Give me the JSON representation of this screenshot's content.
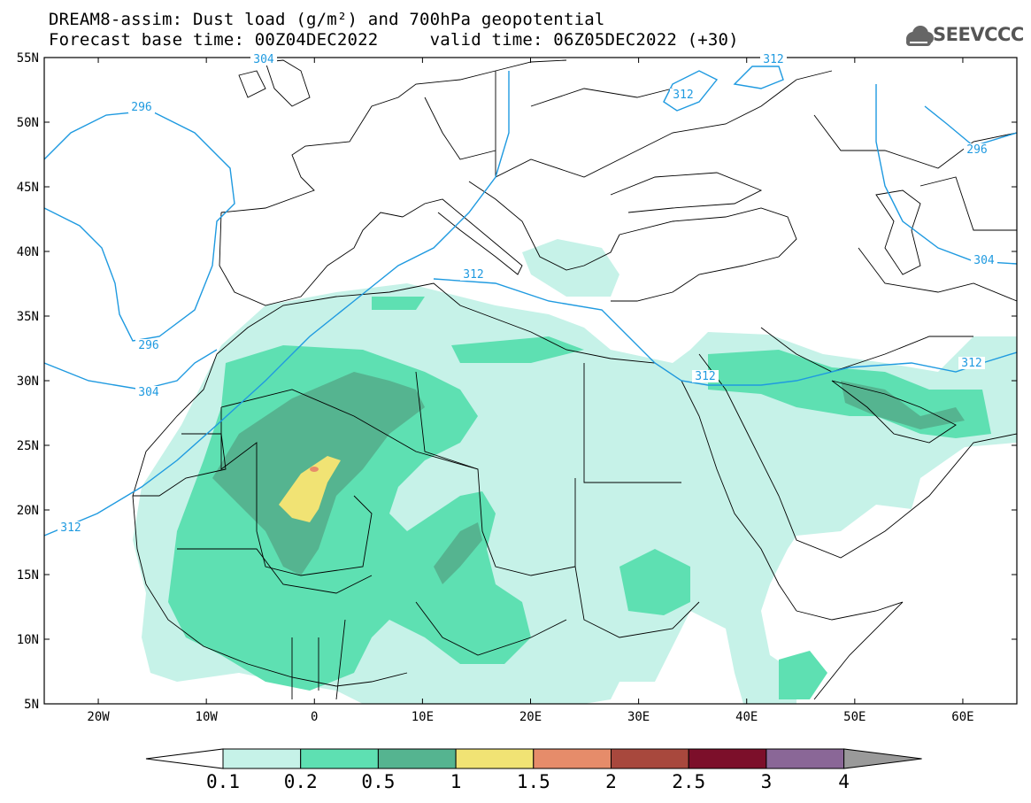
{
  "title": {
    "line1": "DREAM8-assim: Dust load (g/m²) and 700hPa geopotential",
    "line2": "Forecast base time: 00Z04DEC2022     valid time: 06Z05DEC2022 (+30)"
  },
  "logo": {
    "text": "SEEVCCC",
    "icon": "cloud-logo-icon"
  },
  "map": {
    "lon_range": [
      -25,
      65
    ],
    "lat_range": [
      5,
      55
    ],
    "lat_ticks": [
      "5N",
      "10N",
      "15N",
      "20N",
      "25N",
      "30N",
      "35N",
      "40N",
      "45N",
      "50N",
      "55N"
    ],
    "lon_ticks": [
      "20W",
      "10W",
      "0",
      "10E",
      "20E",
      "30E",
      "40E",
      "50E",
      "60E"
    ],
    "contour_labels": [
      "296",
      "296",
      "304",
      "304",
      "312",
      "312",
      "312",
      "312",
      "312",
      "312",
      "296",
      "304"
    ]
  },
  "colorbar": {
    "levels": [
      "0.1",
      "0.2",
      "0.5",
      "1",
      "1.5",
      "2",
      "2.5",
      "3",
      "4"
    ],
    "colors": [
      "#c6f2e8",
      "#5ee0b2",
      "#55b490",
      "#f1e374",
      "#e68c6a",
      "#a8483d",
      "#7c0f2a",
      "#8a6797",
      "#9a9a9a"
    ]
  },
  "colors": {
    "contour": "#1f9ae0",
    "border": "#000000"
  }
}
